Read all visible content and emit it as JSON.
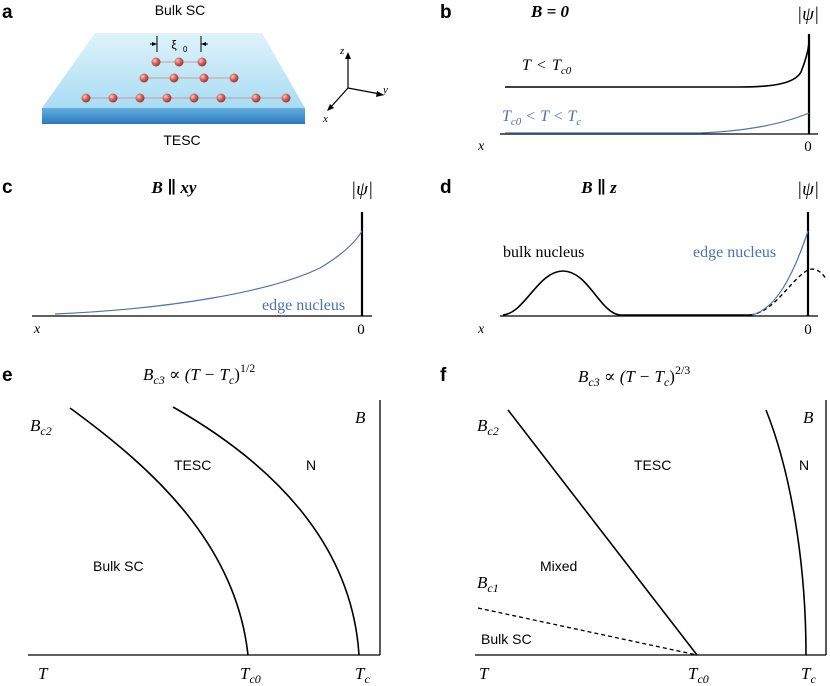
{
  "panel_a": {
    "label": "a",
    "top_text": "Bulk SC",
    "bottom_text": "TESC",
    "xi": "ξ",
    "xi_sub": "0",
    "axis_z": "z",
    "axis_y": "y",
    "axis_x": "x",
    "colors": {
      "slab_top": "#bfe6f7",
      "slab_side": "#3f8fcf",
      "atom": "#c9504a"
    }
  },
  "panel_b": {
    "label": "b",
    "title": "B = 0",
    "psi": "|ψ|",
    "curve1_label_T": "T",
    "curve1_label_rel": "<",
    "curve1_label_Tc0": "T",
    "curve1_label_Tc0_sub": "c0",
    "curve2_label": "T",
    "curve2_label_sub": "c0",
    "curve2_label_mid": "< T <",
    "curve2_label_T": "T",
    "curve2_label_T_sub": "c",
    "x_label": "x",
    "zero_label": "0"
  },
  "panel_c": {
    "label": "c",
    "title": "B ∥ xy",
    "psi": "|ψ|",
    "curve_label": "edge nucleus",
    "x_label": "x",
    "zero_label": "0"
  },
  "panel_d": {
    "label": "d",
    "title": "B ∥ z",
    "psi": "|ψ|",
    "bulk_label": "bulk nucleus",
    "edge_label": "edge nucleus",
    "x_label": "x",
    "zero_label": "0"
  },
  "panel_e": {
    "label": "e",
    "title_main": "B",
    "title_sub": "c3",
    "title_rest": " ∝ (T − T",
    "title_rest_sub": "c",
    "title_close": ")",
    "title_exp": "1/2",
    "bc2": "B",
    "bc2_sub": "c2",
    "b_axis": "B",
    "region_tesc": "TESC",
    "region_n": "N",
    "region_bulk": "Bulk SC",
    "t_axis": "T",
    "tc0": "T",
    "tc0_sub": "c0",
    "tc": "T",
    "tc_sub": "c"
  },
  "panel_f": {
    "label": "f",
    "title_main": "B",
    "title_sub": "c3",
    "title_rest": " ∝ (T − T",
    "title_rest_sub": "c",
    "title_close": ")",
    "title_exp": "2/3",
    "bc2": "B",
    "bc2_sub": "c2",
    "bc1": "B",
    "bc1_sub": "c1",
    "b_axis": "B",
    "region_tesc": "TESC",
    "region_n": "N",
    "region_mixed": "Mixed",
    "region_bulk": "Bulk SC",
    "t_axis": "T",
    "tc0": "T",
    "tc0_sub": "c0",
    "tc": "T",
    "tc_sub": "c"
  }
}
